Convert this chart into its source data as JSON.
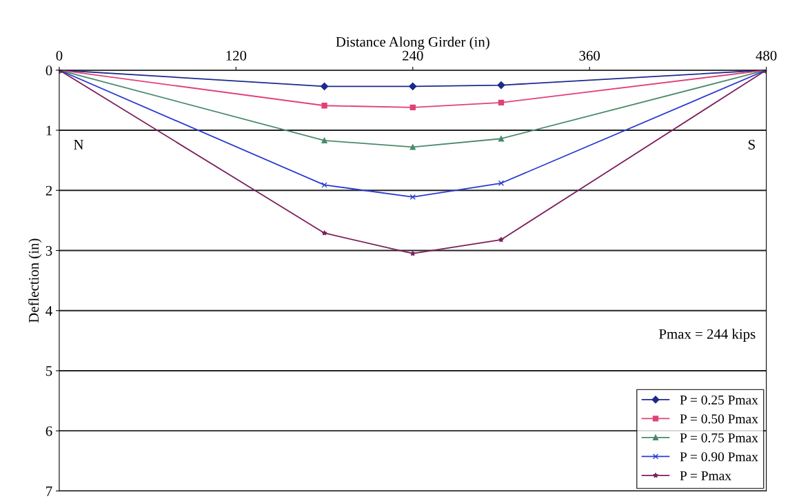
{
  "chart_data": {
    "type": "line",
    "xlabel": "Distance Along Girder (in)",
    "ylabel": "Deflection (in)",
    "x": [
      0,
      180,
      240,
      300,
      480
    ],
    "series": [
      {
        "name": "P = 0.25 Pmax",
        "color": "#1c2a8c",
        "marker": "diamond",
        "values": [
          0,
          0.27,
          0.27,
          0.25,
          0
        ]
      },
      {
        "name": "P = 0.50 Pmax",
        "color": "#e0407a",
        "marker": "square",
        "values": [
          0,
          0.59,
          0.62,
          0.54,
          0
        ]
      },
      {
        "name": "P = 0.75 Pmax",
        "color": "#4a8a6a",
        "marker": "triangle",
        "values": [
          0,
          1.17,
          1.28,
          1.14,
          0
        ]
      },
      {
        "name": "P = 0.90 Pmax",
        "color": "#2a3ad0",
        "marker": "cross",
        "values": [
          0,
          1.91,
          2.11,
          1.88,
          0
        ]
      },
      {
        "name": "P = Pmax",
        "color": "#7a1f5a",
        "marker": "star",
        "values": [
          0,
          2.71,
          3.05,
          2.82,
          0
        ]
      }
    ],
    "xlim": [
      0,
      480
    ],
    "xticks": [
      0,
      120,
      240,
      360,
      480
    ],
    "ylim": [
      7,
      0
    ],
    "yticks": [
      0,
      1,
      2,
      3,
      4,
      5,
      6,
      7
    ],
    "grid": "y",
    "legend": "bottom right",
    "line_style": "solid",
    "annotations": [
      "N",
      "S",
      "Pmax = 244 kips"
    ]
  }
}
